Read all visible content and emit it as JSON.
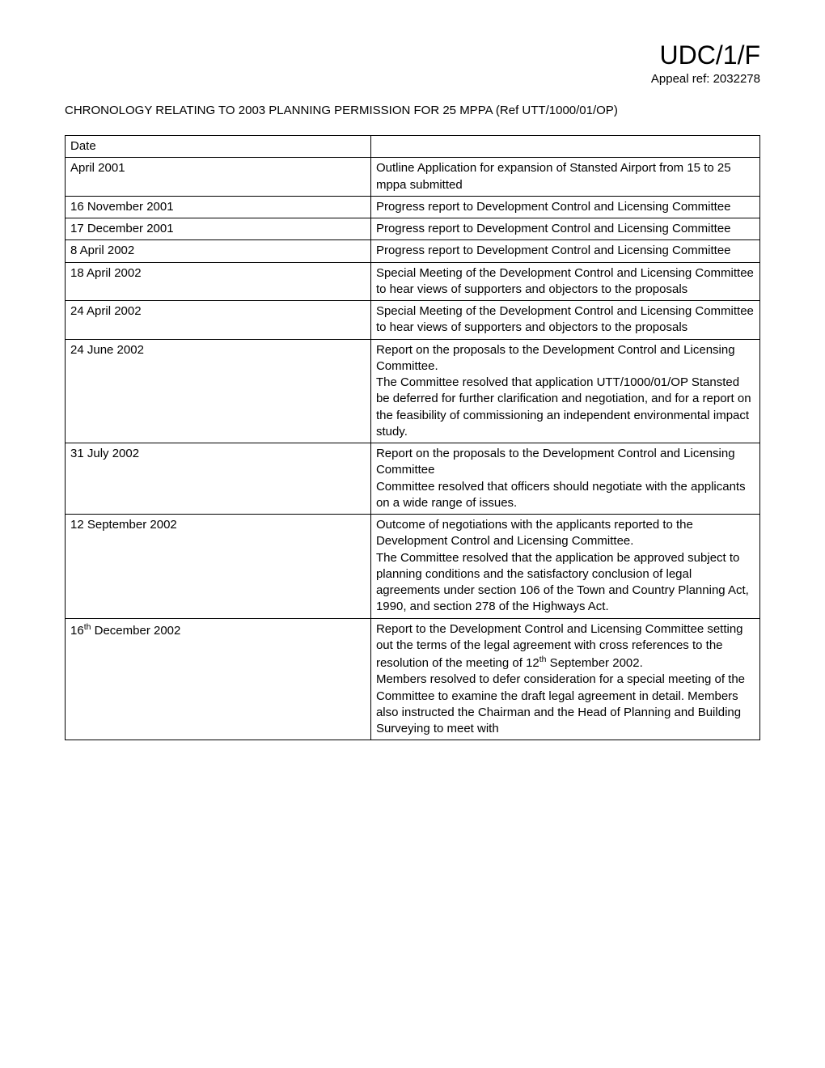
{
  "header": {
    "code": "UDC/1/F",
    "appeal_ref": "Appeal ref: 2032278"
  },
  "title": "CHRONOLOGY RELATING TO 2003 PLANNING PERMISSION FOR 25 MPPA (Ref UTT/1000/01/OP)",
  "table": {
    "header_date": "Date",
    "header_desc": "",
    "rows": [
      {
        "date": "April 2001",
        "desc": "Outline Application for expansion of Stansted Airport from 15 to 25 mppa submitted"
      },
      {
        "date": "16 November 2001",
        "desc": "Progress report to Development Control and Licensing Committee"
      },
      {
        "date": "17 December 2001",
        "desc": "Progress report to Development Control and Licensing Committee"
      },
      {
        "date": "8 April 2002",
        "desc": "Progress report to Development Control and Licensing Committee"
      },
      {
        "date": "18 April 2002",
        "desc": "Special Meeting of the Development Control and Licensing Committee to hear views of supporters and objectors to the proposals"
      },
      {
        "date": "24 April 2002",
        "desc": "Special Meeting of the Development Control and Licensing Committee to hear views of supporters and objectors to the proposals"
      },
      {
        "date": "24 June 2002",
        "desc": "Report on the proposals to the Development Control and Licensing Committee.\nThe Committee resolved that application UTT/1000/01/OP Stansted be deferred for further clarification and negotiation, and for a report on the feasibility of commissioning an independent environmental impact study."
      },
      {
        "date": "31 July 2002",
        "desc": "Report on the proposals to the Development Control and Licensing Committee\nCommittee resolved that officers should negotiate with the applicants on a wide range of issues."
      },
      {
        "date": "12 September 2002",
        "desc": "Outcome of negotiations with the applicants reported to the Development Control and Licensing Committee.\nThe Committee resolved that the application be approved subject to planning conditions and the satisfactory conclusion of legal agreements under section 106 of the Town and Country Planning Act, 1990, and section 278 of the Highways Act."
      },
      {
        "date_html": "16<sup>th</sup> December 2002",
        "desc_html": "Report to the Development Control and Licensing Committee setting out the terms of the legal agreement with cross references to the resolution of the meeting of 12<sup>th</sup> September 2002.<br>Members resolved to defer consideration for a special meeting of the Committee to examine the draft legal agreement in detail.  Members also instructed the Chairman and the Head of Planning and Building Surveying to meet with"
      }
    ]
  }
}
